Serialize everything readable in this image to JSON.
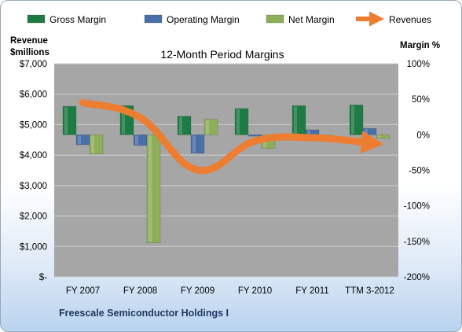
{
  "chart_data": {
    "type": "bar",
    "title": "12-Month Period Margins",
    "company": "Freescale Semiconductor Holdings I",
    "categories": [
      "FY 2007",
      "FY 2008",
      "FY 2009",
      "FY 2010",
      "FY 2011",
      "TTM 3-2012"
    ],
    "left_axis": {
      "label_line1": "Revenue",
      "label_line2": "$millions",
      "range": [
        0,
        7000
      ],
      "ticks": [
        {
          "value": 7000,
          "label": "$7,000"
        },
        {
          "value": 6000,
          "label": "$6,000"
        },
        {
          "value": 5000,
          "label": "$5,000"
        },
        {
          "value": 4000,
          "label": "$4,000"
        },
        {
          "value": 3000,
          "label": "$3,000"
        },
        {
          "value": 2000,
          "label": "$2,000"
        },
        {
          "value": 1000,
          "label": "$1,000"
        },
        {
          "value": 0,
          "label": "$-"
        }
      ]
    },
    "right_axis": {
      "label": "Margin %",
      "range": [
        -200,
        100
      ],
      "ticks": [
        {
          "value": 100,
          "label": "100%"
        },
        {
          "value": 50,
          "label": "50%"
        },
        {
          "value": 0,
          "label": "0%"
        },
        {
          "value": -50,
          "label": "-50%"
        },
        {
          "value": -100,
          "label": "-100%"
        },
        {
          "value": -150,
          "label": "-150%"
        },
        {
          "value": -200,
          "label": "-200%"
        }
      ]
    },
    "legend_position": "top",
    "series": [
      {
        "name": "Gross Margin",
        "kind": "bar",
        "axis": "right",
        "color": "#1e7b44",
        "values": [
          40,
          41,
          26,
          37,
          41,
          42
        ]
      },
      {
        "name": "Operating Margin",
        "kind": "bar",
        "axis": "right",
        "color": "#4a6ea9",
        "values": [
          -14,
          -15,
          -26,
          -2,
          7,
          9
        ]
      },
      {
        "name": "Net Margin",
        "kind": "bar",
        "axis": "right",
        "color": "#8fae5a",
        "values": [
          -27,
          -152,
          22,
          -19,
          -5,
          -5
        ]
      },
      {
        "name": "Revenues",
        "kind": "line",
        "axis": "left",
        "color": "#ed7d31",
        "values": [
          5720,
          5230,
          3510,
          4460,
          4570,
          4400
        ]
      }
    ],
    "grid": true,
    "plot_background": "#a6a6a6"
  }
}
